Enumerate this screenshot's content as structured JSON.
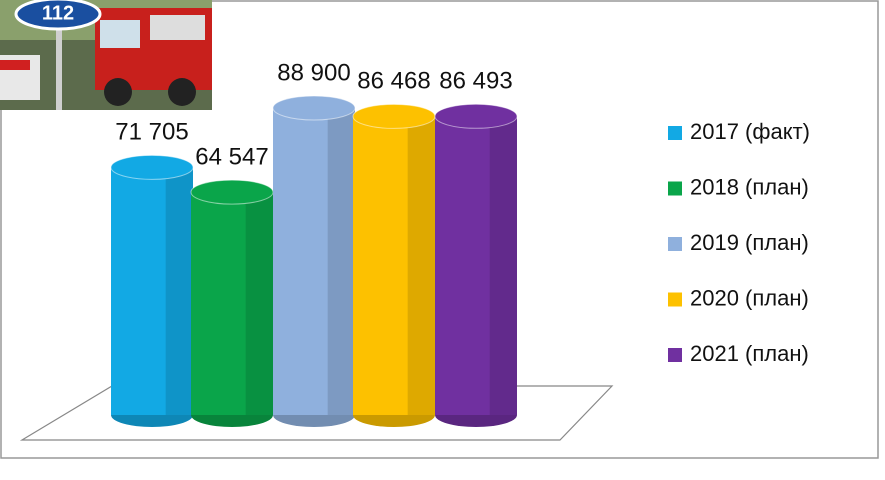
{
  "photo_sign": "112",
  "chart_data": {
    "type": "cylinder",
    "categories": [
      "2017 (факт)",
      "2018 (план)",
      "2019 (план)",
      "2020 (план)",
      "2021 (план)"
    ],
    "values": [
      71705,
      64547,
      88900,
      86468,
      86493
    ],
    "value_labels": [
      "71 705",
      "64 547",
      "88 900",
      "86 468",
      "86 493"
    ],
    "colors": [
      "#12a9e4",
      "#0aa54a",
      "#8fb0dd",
      "#fdc100",
      "#7030a0"
    ],
    "legend": "right"
  }
}
